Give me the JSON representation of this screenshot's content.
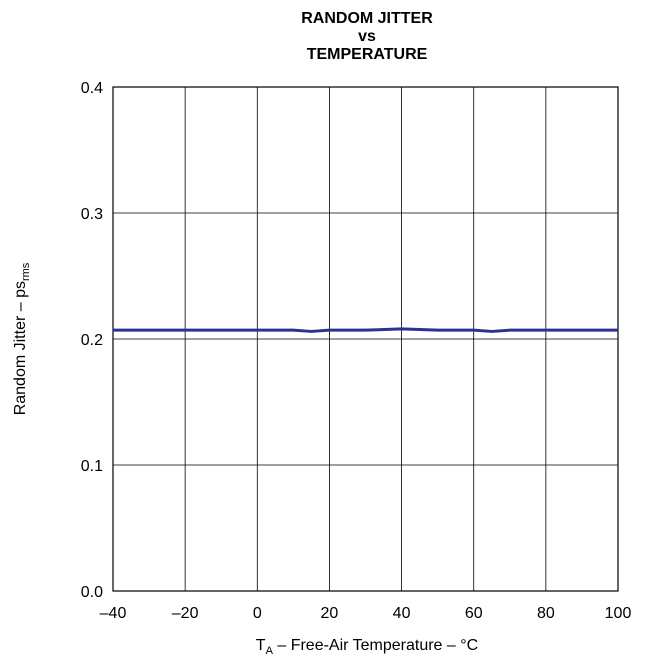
{
  "chart_data": {
    "type": "line",
    "title_lines": [
      "RANDOM JITTER",
      "vs",
      "TEMPERATURE"
    ],
    "xlabel": {
      "main": "T",
      "sub": "A",
      "rest": " – Free-Air Temperature – °C"
    },
    "ylabel": {
      "main": "Random Jitter – ps",
      "sub": "rms"
    },
    "xlim": [
      -40,
      100
    ],
    "ylim": [
      0.0,
      0.4
    ],
    "xticks": [
      "–40",
      "–20",
      "0",
      "20",
      "40",
      "60",
      "80",
      "100"
    ],
    "xtick_values": [
      -40,
      -20,
      0,
      20,
      40,
      60,
      80,
      100
    ],
    "yticks": [
      "0.4",
      "0.3",
      "0.2",
      "0.1",
      "0.0"
    ],
    "ytick_values": [
      0.4,
      0.3,
      0.2,
      0.1,
      0.0
    ],
    "grid": true,
    "series": [
      {
        "color": "#2b3390",
        "x": [
          -40,
          -20,
          0,
          10,
          15,
          20,
          30,
          40,
          50,
          60,
          65,
          70,
          80,
          100
        ],
        "y": [
          0.207,
          0.207,
          0.207,
          0.207,
          0.206,
          0.207,
          0.207,
          0.208,
          0.207,
          0.207,
          0.206,
          0.207,
          0.207,
          0.207
        ]
      }
    ]
  }
}
